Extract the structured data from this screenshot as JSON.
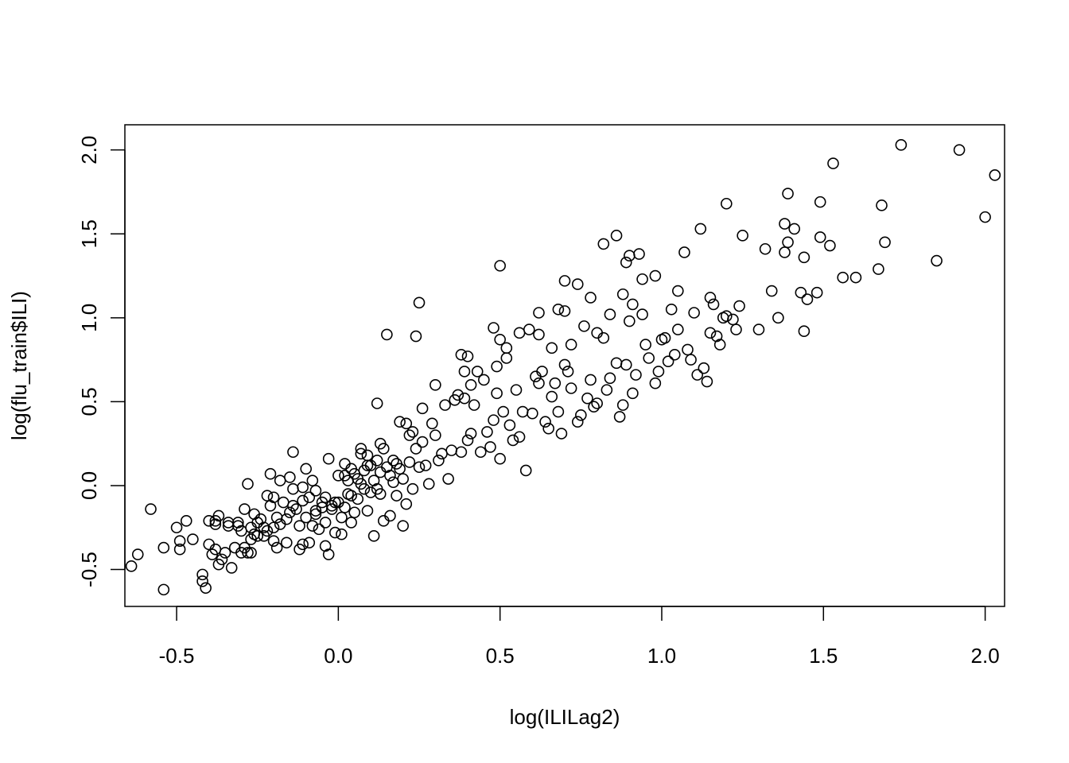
{
  "chart_data": {
    "type": "scatter",
    "title": "",
    "xlabel": "log(ILILag2)",
    "ylabel": "log(flu_train$ILI)",
    "xlim": [
      -0.66,
      2.06
    ],
    "ylim": [
      -0.72,
      2.15
    ],
    "xticks": [
      -0.5,
      0.0,
      0.5,
      1.0,
      1.5,
      2.0
    ],
    "xtick_labels": [
      "-0.5",
      "0.0",
      "0.5",
      "1.0",
      "1.5",
      "2.0"
    ],
    "yticks": [
      -0.5,
      0.0,
      0.5,
      1.0,
      1.5,
      2.0
    ],
    "ytick_labels": [
      "-0.5",
      "0.0",
      "0.5",
      "1.0",
      "1.5",
      "2.0"
    ],
    "grid": false,
    "legend": "none",
    "marker": "open-circle",
    "point_color": "#000000",
    "series": [
      {
        "points": [
          [
            -0.64,
            -0.48
          ],
          [
            -0.62,
            -0.41
          ],
          [
            -0.58,
            -0.14
          ],
          [
            -0.54,
            -0.62
          ],
          [
            -0.54,
            -0.37
          ],
          [
            -0.5,
            -0.25
          ],
          [
            -0.49,
            -0.38
          ],
          [
            -0.49,
            -0.33
          ],
          [
            -0.47,
            -0.21
          ],
          [
            -0.45,
            -0.32
          ],
          [
            -0.42,
            -0.53
          ],
          [
            -0.42,
            -0.57
          ],
          [
            -0.41,
            -0.61
          ],
          [
            -0.4,
            -0.35
          ],
          [
            -0.4,
            -0.21
          ],
          [
            -0.39,
            -0.41
          ],
          [
            -0.38,
            -0.38
          ],
          [
            -0.38,
            -0.23
          ],
          [
            -0.37,
            -0.18
          ],
          [
            -0.37,
            -0.47
          ],
          [
            -0.36,
            -0.44
          ],
          [
            -0.35,
            -0.4
          ],
          [
            -0.34,
            -0.24
          ],
          [
            -0.33,
            -0.49
          ],
          [
            -0.32,
            -0.37
          ],
          [
            -0.31,
            -0.24
          ],
          [
            -0.31,
            -0.22
          ],
          [
            -0.3,
            -0.27
          ],
          [
            -0.29,
            -0.14
          ],
          [
            -0.29,
            -0.37
          ],
          [
            -0.28,
            -0.4
          ],
          [
            -0.28,
            0.01
          ],
          [
            -0.27,
            -0.25
          ],
          [
            -0.27,
            -0.32
          ],
          [
            -0.27,
            -0.4
          ],
          [
            -0.26,
            -0.17
          ],
          [
            -0.26,
            -0.29
          ],
          [
            -0.25,
            -0.22
          ],
          [
            -0.24,
            -0.2
          ],
          [
            -0.23,
            -0.25
          ],
          [
            -0.23,
            -0.3
          ],
          [
            -0.22,
            -0.27
          ],
          [
            -0.21,
            -0.12
          ],
          [
            -0.21,
            0.07
          ],
          [
            -0.2,
            -0.33
          ],
          [
            -0.2,
            -0.25
          ],
          [
            -0.19,
            -0.19
          ],
          [
            -0.19,
            -0.37
          ],
          [
            -0.18,
            0.03
          ],
          [
            -0.18,
            -0.23
          ],
          [
            -0.17,
            -0.1
          ],
          [
            -0.16,
            -0.2
          ],
          [
            -0.15,
            0.05
          ],
          [
            -0.15,
            -0.16
          ],
          [
            -0.14,
            -0.02
          ],
          [
            -0.14,
            0.2
          ],
          [
            -0.13,
            -0.14
          ],
          [
            -0.12,
            -0.24
          ],
          [
            -0.12,
            -0.38
          ],
          [
            -0.11,
            -0.09
          ],
          [
            -0.11,
            -0.35
          ],
          [
            -0.1,
            0.1
          ],
          [
            -0.1,
            -0.19
          ],
          [
            -0.09,
            -0.34
          ],
          [
            -0.09,
            -0.07
          ],
          [
            -0.08,
            0.03
          ],
          [
            -0.08,
            -0.24
          ],
          [
            -0.07,
            -0.03
          ],
          [
            -0.07,
            -0.15
          ],
          [
            -0.06,
            -0.26
          ],
          [
            -0.05,
            -0.13
          ],
          [
            -0.05,
            -0.1
          ],
          [
            -0.04,
            -0.36
          ],
          [
            -0.04,
            -0.22
          ],
          [
            -0.03,
            -0.41
          ],
          [
            -0.02,
            -0.12
          ],
          [
            -0.02,
            -0.14
          ],
          [
            -0.01,
            -0.1
          ],
          [
            -0.01,
            -0.28
          ],
          [
            0.0,
            0.06
          ],
          [
            0.0,
            -0.1
          ],
          [
            0.01,
            -0.19
          ],
          [
            0.01,
            -0.29
          ],
          [
            0.02,
            0.06
          ],
          [
            0.02,
            -0.13
          ],
          [
            0.03,
            -0.05
          ],
          [
            0.03,
            0.03
          ],
          [
            0.04,
            -0.22
          ],
          [
            0.04,
            -0.06
          ],
          [
            0.05,
            -0.16
          ],
          [
            0.05,
            0.07
          ],
          [
            0.06,
            0.04
          ],
          [
            0.06,
            -0.08
          ],
          [
            0.07,
            0.19
          ],
          [
            0.07,
            0.01
          ],
          [
            0.08,
            -0.02
          ],
          [
            0.08,
            0.09
          ],
          [
            0.09,
            0.18
          ],
          [
            0.09,
            -0.15
          ],
          [
            0.1,
            -0.04
          ],
          [
            0.1,
            0.12
          ],
          [
            0.11,
            -0.3
          ],
          [
            0.12,
            0.15
          ],
          [
            0.12,
            -0.02
          ],
          [
            0.13,
            -0.05
          ],
          [
            0.13,
            0.08
          ],
          [
            0.14,
            -0.21
          ],
          [
            0.14,
            0.22
          ],
          [
            0.15,
            0.11
          ],
          [
            0.16,
            -0.18
          ],
          [
            0.16,
            0.06
          ],
          [
            0.17,
            0.02
          ],
          [
            0.18,
            -0.06
          ],
          [
            0.18,
            0.13
          ],
          [
            0.19,
            0.1
          ],
          [
            0.2,
            -0.24
          ],
          [
            0.2,
            0.04
          ],
          [
            0.21,
            -0.11
          ],
          [
            0.22,
            0.14
          ],
          [
            0.22,
            0.3
          ],
          [
            0.23,
            -0.02
          ],
          [
            0.24,
            0.22
          ],
          [
            0.25,
            0.11
          ],
          [
            0.26,
            0.26
          ],
          [
            0.27,
            0.12
          ],
          [
            0.28,
            0.01
          ],
          [
            0.3,
            0.3
          ],
          [
            0.31,
            0.15
          ],
          [
            0.33,
            0.48
          ],
          [
            0.34,
            0.04
          ],
          [
            0.35,
            0.21
          ],
          [
            0.37,
            0.54
          ],
          [
            0.38,
            0.2
          ],
          [
            0.39,
            0.68
          ],
          [
            0.4,
            0.27
          ],
          [
            0.41,
            0.31
          ],
          [
            0.42,
            0.48
          ],
          [
            0.44,
            0.2
          ],
          [
            0.45,
            0.63
          ],
          [
            0.47,
            0.23
          ],
          [
            0.48,
            0.39
          ],
          [
            0.49,
            0.71
          ],
          [
            0.5,
            0.16
          ],
          [
            0.51,
            0.44
          ],
          [
            0.52,
            0.82
          ],
          [
            0.54,
            0.27
          ],
          [
            0.55,
            0.57
          ],
          [
            0.56,
            0.29
          ],
          [
            0.58,
            0.09
          ],
          [
            0.6,
            0.43
          ],
          [
            0.62,
            0.61
          ],
          [
            0.63,
            0.68
          ],
          [
            0.64,
            0.38
          ],
          [
            0.66,
            0.53
          ],
          [
            0.68,
            0.44
          ],
          [
            0.7,
            0.72
          ],
          [
            0.72,
            0.58
          ],
          [
            0.74,
            0.38
          ],
          [
            0.76,
            0.95
          ],
          [
            0.78,
            0.63
          ],
          [
            0.8,
            0.49
          ],
          [
            0.82,
            0.88
          ],
          [
            0.84,
            0.64
          ],
          [
            0.86,
            0.73
          ],
          [
            0.88,
            0.48
          ],
          [
            0.9,
            0.98
          ],
          [
            0.92,
            0.66
          ],
          [
            0.94,
            1.02
          ],
          [
            0.96,
            0.76
          ],
          [
            0.98,
            0.61
          ],
          [
            1.0,
            0.87
          ],
          [
            1.02,
            0.74
          ],
          [
            1.05,
            0.93
          ],
          [
            1.08,
            0.81
          ],
          [
            1.1,
            1.03
          ],
          [
            1.13,
            0.7
          ],
          [
            1.15,
            1.12
          ],
          [
            1.18,
            0.84
          ],
          [
            1.2,
            1.01
          ],
          [
            1.23,
            0.93
          ],
          [
            0.12,
            0.49
          ],
          [
            0.15,
            0.9
          ],
          [
            0.24,
            0.89
          ],
          [
            0.25,
            1.09
          ],
          [
            0.38,
            0.78
          ],
          [
            0.4,
            0.77
          ],
          [
            0.43,
            0.68
          ],
          [
            0.48,
            0.94
          ],
          [
            0.5,
            1.31
          ],
          [
            0.5,
            0.87
          ],
          [
            0.52,
            0.76
          ],
          [
            0.56,
            0.91
          ],
          [
            0.59,
            0.93
          ],
          [
            0.62,
            0.9
          ],
          [
            0.62,
            1.03
          ],
          [
            0.66,
            0.82
          ],
          [
            0.68,
            1.05
          ],
          [
            0.7,
            1.22
          ],
          [
            0.7,
            1.04
          ],
          [
            0.72,
            0.84
          ],
          [
            0.74,
            1.2
          ],
          [
            0.78,
            1.12
          ],
          [
            0.8,
            0.91
          ],
          [
            0.82,
            1.44
          ],
          [
            0.84,
            1.02
          ],
          [
            0.86,
            1.49
          ],
          [
            0.88,
            1.14
          ],
          [
            0.89,
            1.33
          ],
          [
            0.9,
            1.37
          ],
          [
            0.91,
            1.08
          ],
          [
            0.93,
            1.38
          ],
          [
            0.94,
            1.23
          ],
          [
            0.98,
            1.25
          ],
          [
            1.03,
            1.05
          ],
          [
            1.05,
            1.16
          ],
          [
            1.07,
            1.39
          ],
          [
            1.12,
            1.53
          ],
          [
            1.15,
            0.91
          ],
          [
            1.16,
            1.08
          ],
          [
            1.19,
            1.0
          ],
          [
            1.2,
            1.68
          ],
          [
            1.22,
            0.99
          ],
          [
            1.24,
            1.07
          ],
          [
            1.25,
            1.49
          ],
          [
            1.3,
            0.93
          ],
          [
            1.32,
            1.41
          ],
          [
            1.34,
            1.16
          ],
          [
            1.36,
            1.0
          ],
          [
            1.38,
            1.39
          ],
          [
            1.38,
            1.56
          ],
          [
            1.39,
            1.74
          ],
          [
            1.39,
            1.45
          ],
          [
            1.41,
            1.53
          ],
          [
            1.43,
            1.15
          ],
          [
            1.44,
            0.92
          ],
          [
            1.44,
            1.36
          ],
          [
            1.45,
            1.11
          ],
          [
            1.48,
            1.15
          ],
          [
            1.49,
            1.48
          ],
          [
            1.49,
            1.69
          ],
          [
            1.52,
            1.43
          ],
          [
            1.53,
            1.92
          ],
          [
            1.56,
            1.24
          ],
          [
            1.6,
            1.24
          ],
          [
            1.67,
            1.29
          ],
          [
            1.68,
            1.67
          ],
          [
            1.69,
            1.45
          ],
          [
            1.74,
            2.03
          ],
          [
            1.85,
            1.34
          ],
          [
            1.92,
            2.0
          ],
          [
            2.0,
            1.6
          ],
          [
            2.03,
            1.85
          ],
          [
            -0.38,
            -0.21
          ],
          [
            -0.34,
            -0.22
          ],
          [
            -0.3,
            -0.4
          ],
          [
            -0.25,
            -0.3
          ],
          [
            -0.22,
            -0.06
          ],
          [
            -0.2,
            -0.07
          ],
          [
            -0.16,
            -0.34
          ],
          [
            -0.14,
            -0.12
          ],
          [
            -0.11,
            -0.01
          ],
          [
            -0.07,
            -0.17
          ],
          [
            -0.04,
            -0.07
          ],
          [
            -0.03,
            0.16
          ],
          [
            0.02,
            0.13
          ],
          [
            0.04,
            0.1
          ],
          [
            0.07,
            0.22
          ],
          [
            0.09,
            0.12
          ],
          [
            0.11,
            0.03
          ],
          [
            0.13,
            0.25
          ],
          [
            0.17,
            0.15
          ],
          [
            0.19,
            0.38
          ],
          [
            0.21,
            0.37
          ],
          [
            0.23,
            0.32
          ],
          [
            0.26,
            0.46
          ],
          [
            0.29,
            0.37
          ],
          [
            0.3,
            0.6
          ],
          [
            0.32,
            0.19
          ],
          [
            0.36,
            0.51
          ],
          [
            0.39,
            0.52
          ],
          [
            0.41,
            0.6
          ],
          [
            0.46,
            0.32
          ],
          [
            0.49,
            0.55
          ],
          [
            0.53,
            0.36
          ],
          [
            0.57,
            0.44
          ],
          [
            0.61,
            0.65
          ],
          [
            0.65,
            0.34
          ],
          [
            0.67,
            0.61
          ],
          [
            0.69,
            0.31
          ],
          [
            0.71,
            0.68
          ],
          [
            0.75,
            0.42
          ],
          [
            0.77,
            0.52
          ],
          [
            0.79,
            0.47
          ],
          [
            0.83,
            0.57
          ],
          [
            0.87,
            0.41
          ],
          [
            0.89,
            0.72
          ],
          [
            0.91,
            0.55
          ],
          [
            0.95,
            0.84
          ],
          [
            0.99,
            0.68
          ],
          [
            1.01,
            0.88
          ],
          [
            1.04,
            0.78
          ],
          [
            1.09,
            0.75
          ],
          [
            1.11,
            0.66
          ],
          [
            1.14,
            0.62
          ],
          [
            1.17,
            0.89
          ]
        ]
      }
    ]
  }
}
